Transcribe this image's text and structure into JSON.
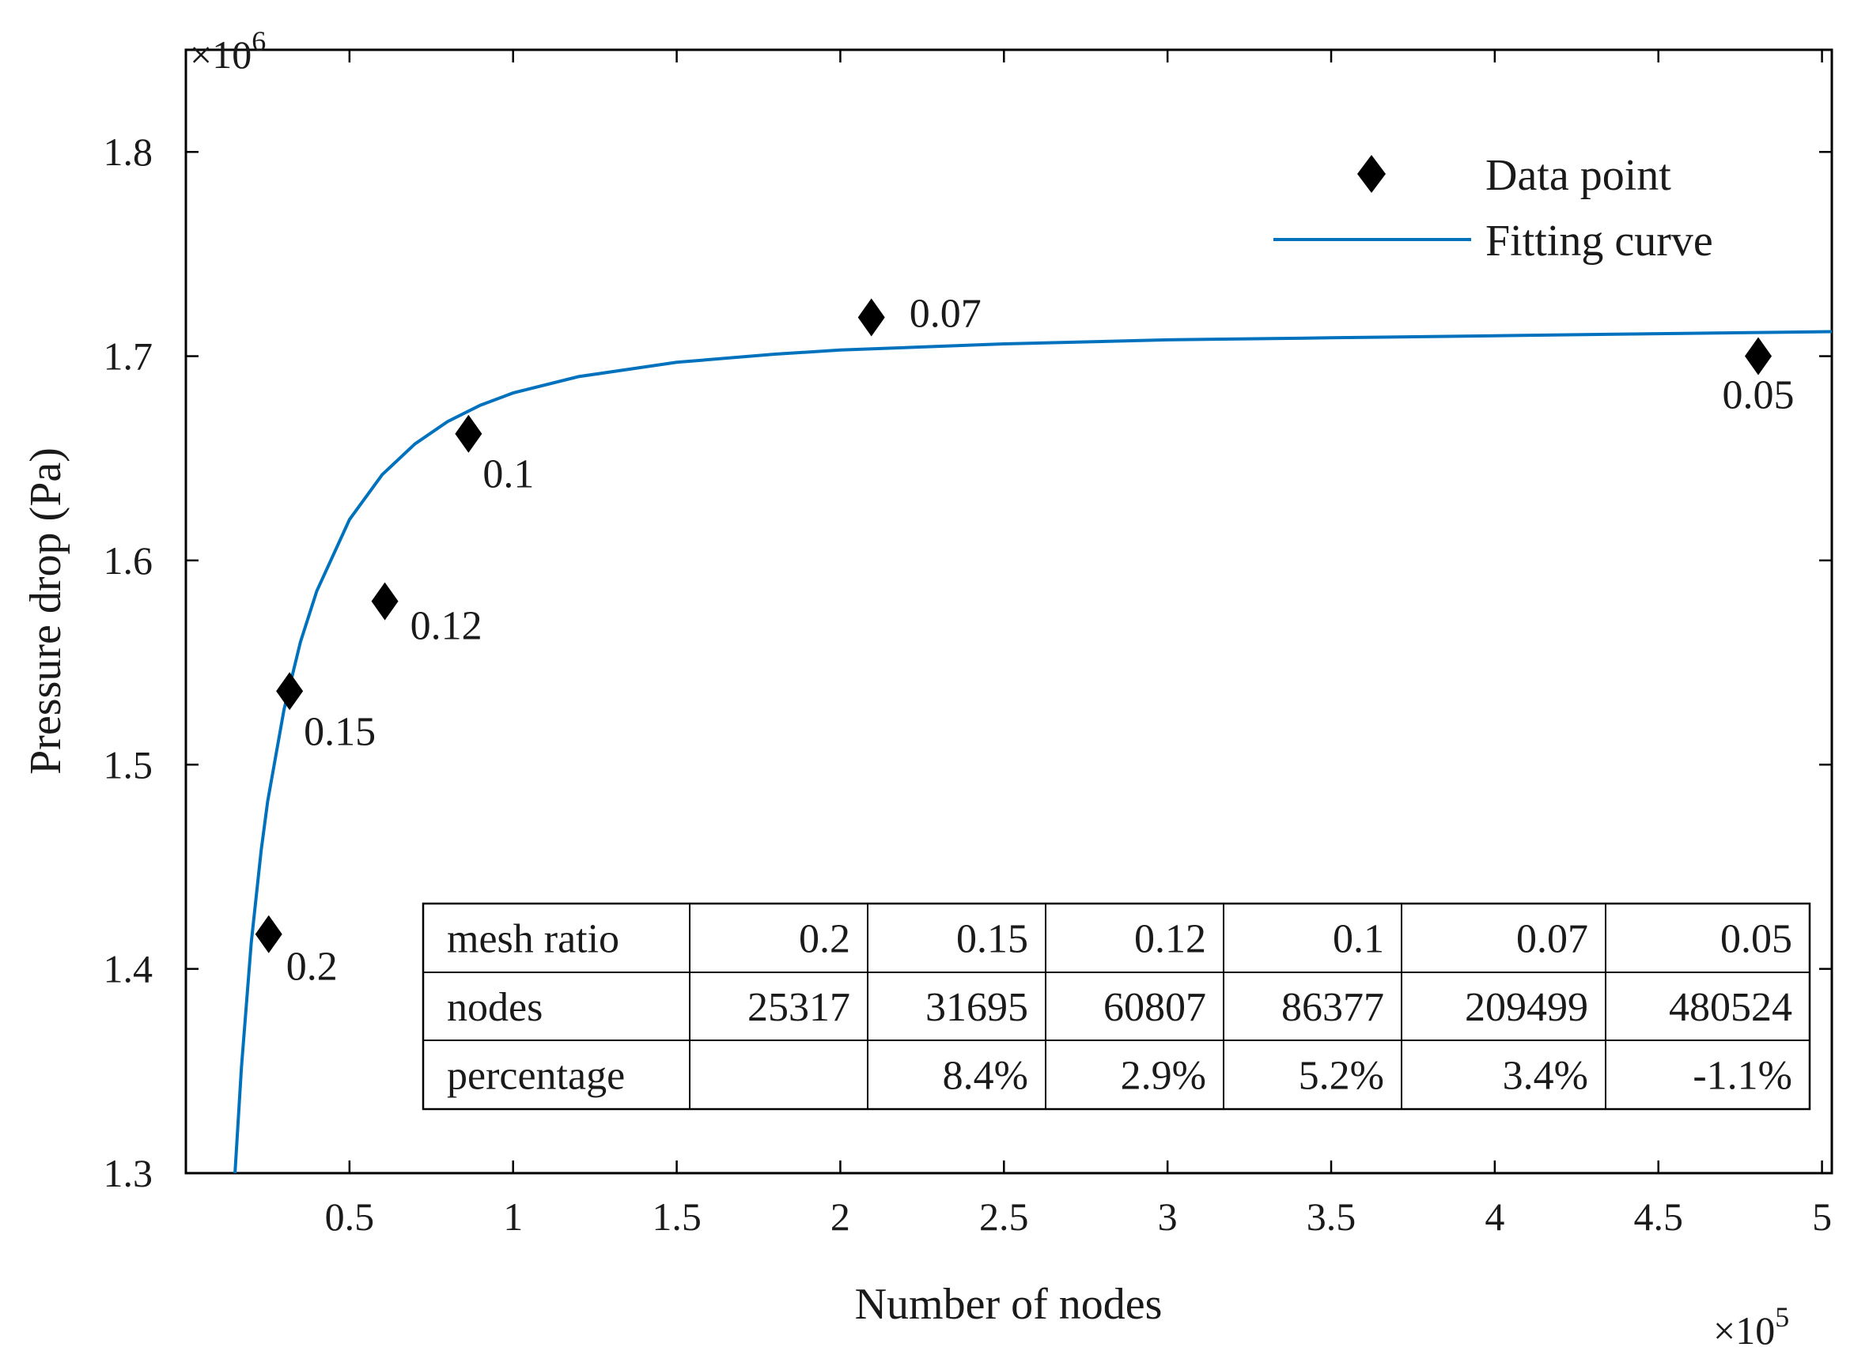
{
  "chart_data": {
    "type": "scatter",
    "xlabel": "Number of nodes",
    "ylabel": "Pressure drop (Pa)",
    "x_multiplier": "×10",
    "x_multiplier_exp": "5",
    "y_multiplier": "×10",
    "y_multiplier_exp": "6",
    "xlim": [
      0.0,
      5.03
    ],
    "ylim": [
      1.3,
      1.85
    ],
    "xticks": [
      0.5,
      1,
      1.5,
      2,
      2.5,
      3,
      3.5,
      4,
      4.5,
      5
    ],
    "xtick_labels": [
      "0.5",
      "1",
      "1.5",
      "2",
      "2.5",
      "3",
      "3.5",
      "4",
      "4.5",
      "5"
    ],
    "yticks": [
      1.3,
      1.4,
      1.5,
      1.6,
      1.7,
      1.8
    ],
    "ytick_labels": [
      "1.3",
      "1.4",
      "1.5",
      "1.6",
      "1.7",
      "1.8"
    ],
    "grid": false,
    "legend_position": "top-right",
    "series": [
      {
        "name": "Data point",
        "kind": "scatter",
        "marker": "diamond",
        "color": "#000000",
        "points": [
          {
            "x": 0.25317,
            "y": 1.417,
            "label": "0.2"
          },
          {
            "x": 0.31695,
            "y": 1.536,
            "label": "0.15"
          },
          {
            "x": 0.60807,
            "y": 1.58,
            "label": "0.12"
          },
          {
            "x": 0.86377,
            "y": 1.662,
            "label": "0.1"
          },
          {
            "x": 2.09499,
            "y": 1.719,
            "label": "0.07"
          },
          {
            "x": 4.80524,
            "y": 1.7,
            "label": "0.05"
          }
        ]
      },
      {
        "name": "Fitting curve",
        "kind": "line",
        "color": "#0072bd",
        "x": [
          0.15,
          0.17,
          0.2,
          0.23,
          0.25,
          0.3,
          0.35,
          0.4,
          0.5,
          0.6,
          0.7,
          0.8,
          0.9,
          1.0,
          1.2,
          1.5,
          1.8,
          2.0,
          2.5,
          3.0,
          3.5,
          4.0,
          4.5,
          5.03
        ],
        "y": [
          1.3,
          1.352,
          1.413,
          1.458,
          1.482,
          1.527,
          1.56,
          1.585,
          1.62,
          1.642,
          1.657,
          1.668,
          1.676,
          1.682,
          1.69,
          1.697,
          1.701,
          1.703,
          1.706,
          1.708,
          1.709,
          1.71,
          1.711,
          1.712
        ]
      }
    ],
    "table": {
      "rows": [
        [
          "mesh ratio",
          "0.2",
          "0.15",
          "0.12",
          "0.1",
          "0.07",
          "0.05"
        ],
        [
          "nodes",
          "25317",
          "31695",
          "60807",
          "86377",
          "209499",
          "480524"
        ],
        [
          "percentage",
          "",
          "8.4%",
          "2.9%",
          "5.2%",
          "3.4%",
          "-1.1%"
        ]
      ]
    }
  }
}
